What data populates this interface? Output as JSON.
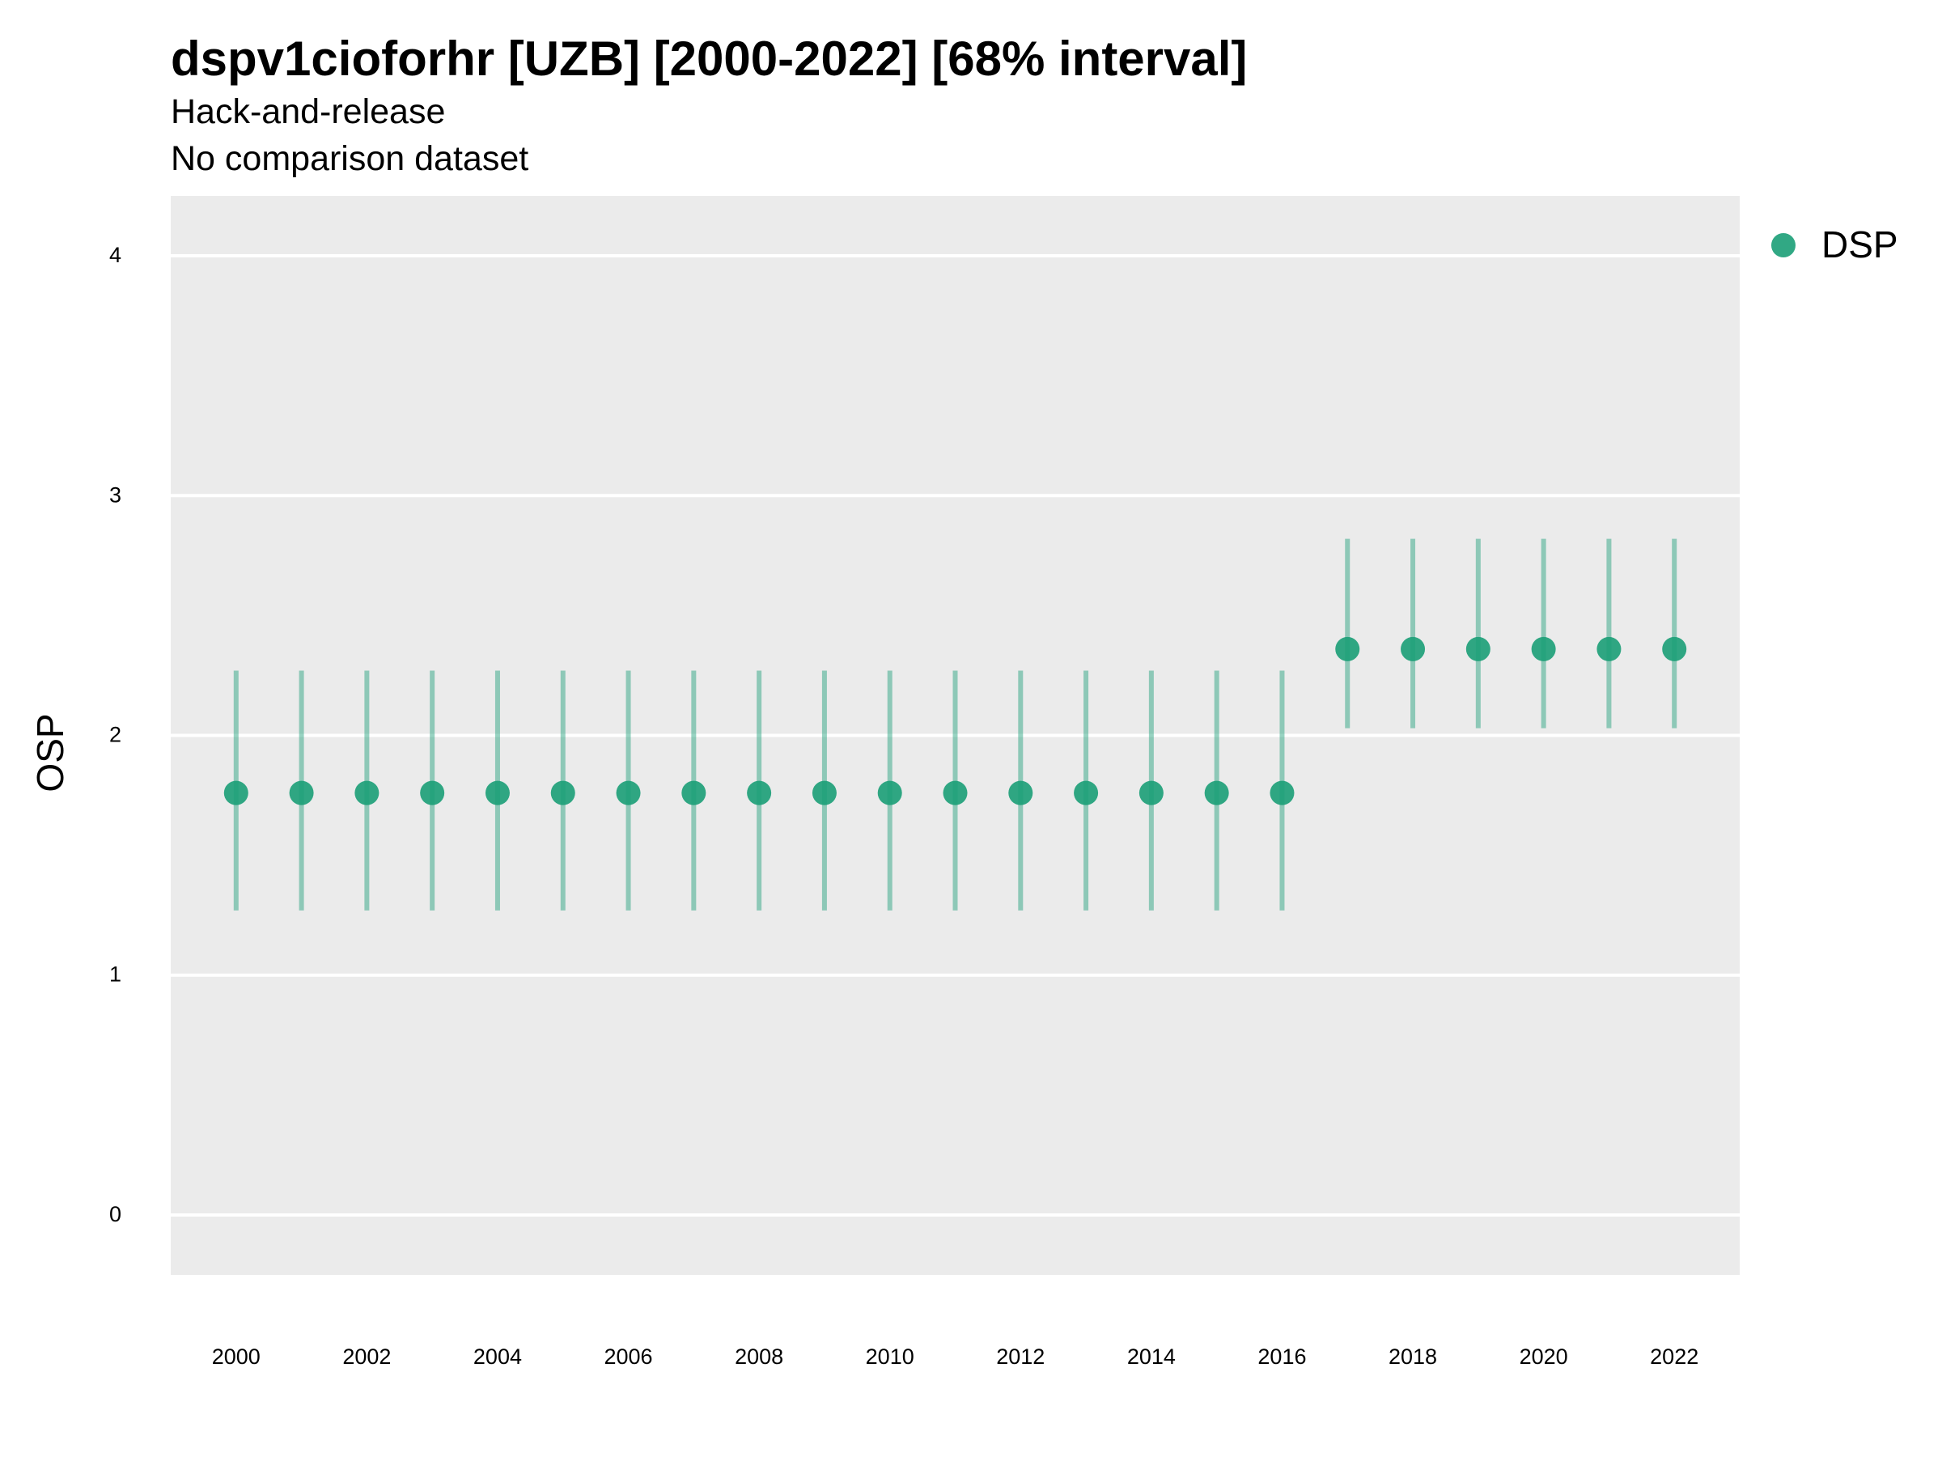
{
  "chart_data": {
    "type": "scatter",
    "title": "dspv1cioforhr [UZB] [2000-2022] [68% interval]",
    "subtitle_lines": [
      "Hack-and-release",
      "No comparison dataset"
    ],
    "xlabel": "",
    "ylabel": "OSP",
    "xlim": [
      1999,
      2023
    ],
    "ylim": [
      -0.25,
      4.25
    ],
    "x_ticks": [
      2000,
      2002,
      2004,
      2006,
      2008,
      2010,
      2012,
      2014,
      2016,
      2018,
      2020,
      2022
    ],
    "y_ticks": [
      0,
      1,
      2,
      3,
      4
    ],
    "grid": true,
    "legend_position": "top-right",
    "series": [
      {
        "name": "DSP",
        "color": "#1b9e77",
        "interval": "68%",
        "points": [
          {
            "x": 2000,
            "y": 1.76,
            "lo": 1.27,
            "hi": 2.27
          },
          {
            "x": 2001,
            "y": 1.76,
            "lo": 1.27,
            "hi": 2.27
          },
          {
            "x": 2002,
            "y": 1.76,
            "lo": 1.27,
            "hi": 2.27
          },
          {
            "x": 2003,
            "y": 1.76,
            "lo": 1.27,
            "hi": 2.27
          },
          {
            "x": 2004,
            "y": 1.76,
            "lo": 1.27,
            "hi": 2.27
          },
          {
            "x": 2005,
            "y": 1.76,
            "lo": 1.27,
            "hi": 2.27
          },
          {
            "x": 2006,
            "y": 1.76,
            "lo": 1.27,
            "hi": 2.27
          },
          {
            "x": 2007,
            "y": 1.76,
            "lo": 1.27,
            "hi": 2.27
          },
          {
            "x": 2008,
            "y": 1.76,
            "lo": 1.27,
            "hi": 2.27
          },
          {
            "x": 2009,
            "y": 1.76,
            "lo": 1.27,
            "hi": 2.27
          },
          {
            "x": 2010,
            "y": 1.76,
            "lo": 1.27,
            "hi": 2.27
          },
          {
            "x": 2011,
            "y": 1.76,
            "lo": 1.27,
            "hi": 2.27
          },
          {
            "x": 2012,
            "y": 1.76,
            "lo": 1.27,
            "hi": 2.27
          },
          {
            "x": 2013,
            "y": 1.76,
            "lo": 1.27,
            "hi": 2.27
          },
          {
            "x": 2014,
            "y": 1.76,
            "lo": 1.27,
            "hi": 2.27
          },
          {
            "x": 2015,
            "y": 1.76,
            "lo": 1.27,
            "hi": 2.27
          },
          {
            "x": 2016,
            "y": 1.76,
            "lo": 1.27,
            "hi": 2.27
          },
          {
            "x": 2017,
            "y": 2.36,
            "lo": 2.03,
            "hi": 2.82
          },
          {
            "x": 2018,
            "y": 2.36,
            "lo": 2.03,
            "hi": 2.82
          },
          {
            "x": 2019,
            "y": 2.36,
            "lo": 2.03,
            "hi": 2.82
          },
          {
            "x": 2020,
            "y": 2.36,
            "lo": 2.03,
            "hi": 2.82
          },
          {
            "x": 2021,
            "y": 2.36,
            "lo": 2.03,
            "hi": 2.82
          },
          {
            "x": 2022,
            "y": 2.36,
            "lo": 2.03,
            "hi": 2.82
          }
        ]
      }
    ],
    "colors": {
      "panel_background": "#ebebeb",
      "gridline": "#ffffff",
      "point": "#1b9e77"
    }
  }
}
